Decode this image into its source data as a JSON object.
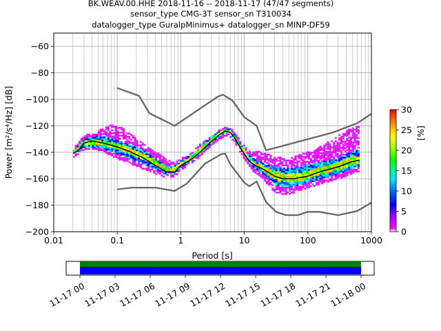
{
  "chart_data": {
    "type": "heatmap",
    "title_lines": [
      "BK.WEAV.00.HHE   2018-11-16 -- 2018-11-17  (47/47 segments)",
      "sensor_type CMG-3T sensor_sn T310034",
      "datalogger_type GuralpMinimus+ datalogger_sn MINP-DF59"
    ],
    "xlabel": "Period [s]",
    "ylabel": "Power [m²/s⁴/Hz] [dB]",
    "x_scale": "log",
    "xlim": [
      0.01,
      1000
    ],
    "ylim": [
      -200,
      -50
    ],
    "x_ticks": [
      {
        "value": 0.01,
        "label": "0.01"
      },
      {
        "value": 0.1,
        "label": "0.1"
      },
      {
        "value": 1,
        "label": "1"
      },
      {
        "value": 10,
        "label": "10"
      },
      {
        "value": 100,
        "label": "100"
      },
      {
        "value": 1000,
        "label": "1000"
      }
    ],
    "y_ticks": [
      {
        "value": -60,
        "label": "−60"
      },
      {
        "value": -80,
        "label": "−80"
      },
      {
        "value": -100,
        "label": "−100"
      },
      {
        "value": -120,
        "label": "−120"
      },
      {
        "value": -140,
        "label": "−140"
      },
      {
        "value": -160,
        "label": "−160"
      },
      {
        "value": -180,
        "label": "−180"
      },
      {
        "value": -200,
        "label": "−200"
      }
    ],
    "grid": true,
    "colorbar": {
      "label": "[%]",
      "range": [
        0,
        30
      ],
      "ticks": [
        {
          "value": 0,
          "label": "0"
        },
        {
          "value": 5,
          "label": "5"
        },
        {
          "value": 10,
          "label": "10"
        },
        {
          "value": 15,
          "label": "15"
        },
        {
          "value": 20,
          "label": "20"
        },
        {
          "value": 25,
          "label": "25"
        },
        {
          "value": 30,
          "label": "30"
        }
      ]
    },
    "noise_models": {
      "color": "#666666",
      "high": [
        [
          0.1,
          -91.5
        ],
        [
          0.22,
          -97.4
        ],
        [
          0.32,
          -110.5
        ],
        [
          0.8,
          -120
        ],
        [
          3.8,
          -98
        ],
        [
          4.6,
          -96.5
        ],
        [
          6.5,
          -101
        ],
        [
          10,
          -113.5
        ],
        [
          15.6,
          -120
        ],
        [
          21.9,
          -138.5
        ],
        [
          31.6,
          -136.5
        ],
        [
          250,
          -125
        ],
        [
          600,
          -118
        ],
        [
          1000,
          -111
        ]
      ],
      "low": [
        [
          0.1,
          -168
        ],
        [
          0.17,
          -166.7
        ],
        [
          0.4,
          -166.7
        ],
        [
          0.8,
          -169.2
        ],
        [
          1.24,
          -163.7
        ],
        [
          2.4,
          -148.6
        ],
        [
          4.3,
          -141.5
        ],
        [
          5.0,
          -141.1
        ],
        [
          6.0,
          -149
        ],
        [
          10,
          -163
        ],
        [
          12,
          -165.7
        ],
        [
          15.6,
          -162.1
        ],
        [
          21.9,
          -177.5
        ],
        [
          31.6,
          -185
        ],
        [
          45,
          -187.5
        ],
        [
          70,
          -187.5
        ],
        [
          100,
          -185
        ],
        [
          150,
          -185
        ],
        [
          300,
          -187.5
        ],
        [
          600,
          -184.4
        ],
        [
          1000,
          -178
        ]
      ]
    },
    "mode_curve": {
      "color": "#000000",
      "points": [
        [
          0.02,
          -141
        ],
        [
          0.025,
          -138
        ],
        [
          0.03,
          -133
        ],
        [
          0.04,
          -131.5
        ],
        [
          0.06,
          -133
        ],
        [
          0.1,
          -136
        ],
        [
          0.15,
          -139
        ],
        [
          0.25,
          -144
        ],
        [
          0.4,
          -150
        ],
        [
          0.6,
          -155
        ],
        [
          0.8,
          -155
        ],
        [
          1.0,
          -150
        ],
        [
          1.5,
          -145
        ],
        [
          2,
          -140
        ],
        [
          3,
          -132
        ],
        [
          4,
          -127
        ],
        [
          5,
          -124
        ],
        [
          6,
          -125
        ],
        [
          7,
          -129
        ],
        [
          9,
          -138
        ],
        [
          12,
          -147
        ],
        [
          15,
          -150
        ],
        [
          20,
          -153
        ],
        [
          30,
          -158
        ],
        [
          40,
          -160
        ],
        [
          60,
          -160
        ],
        [
          100,
          -158
        ],
        [
          150,
          -155
        ],
        [
          300,
          -151
        ],
        [
          500,
          -147
        ],
        [
          650,
          -146
        ]
      ]
    },
    "psd_density": {
      "colors": [
        "#ff00ff",
        "#cc33ff",
        "#0000ff",
        "#0066ff",
        "#00ccff",
        "#33ffcc",
        "#00ff00",
        "#88ff00",
        "#ffff00",
        "#ffaa00",
        "#ff0000"
      ],
      "bands": [
        {
          "points": [
            [
              0.02,
              -144,
              -138
            ],
            [
              0.03,
              -138,
              -128
            ],
            [
              0.05,
              -138,
              -124
            ],
            [
              0.08,
              -142,
              -120
            ],
            [
              0.12,
              -146,
              -122
            ],
            [
              0.2,
              -150,
              -130
            ],
            [
              0.35,
              -155,
              -138
            ],
            [
              0.6,
              -159,
              -146
            ],
            [
              0.8,
              -158,
              -148
            ],
            [
              1,
              -153,
              -145
            ],
            [
              1.5,
              -148,
              -140
            ],
            [
              2,
              -143,
              -134
            ],
            [
              3,
              -135,
              -128
            ],
            [
              4,
              -130,
              -124
            ],
            [
              5,
              -127,
              -121
            ],
            [
              6,
              -128,
              -121
            ],
            [
              7,
              -132,
              -125
            ],
            [
              9,
              -141,
              -133
            ],
            [
              12,
              -151,
              -140
            ],
            [
              15,
              -156,
              -140
            ],
            [
              20,
              -160,
              -140
            ],
            [
              30,
              -170,
              -144
            ],
            [
              45,
              -172,
              -145
            ],
            [
              80,
              -168,
              -142
            ],
            [
              150,
              -164,
              -137
            ],
            [
              300,
              -160,
              -128
            ],
            [
              500,
              -156,
              -122
            ],
            [
              650,
              -154,
              -120
            ]
          ]
        },
        {
          "points": [
            [
              0.02,
              -142,
              -140
            ],
            [
              0.03,
              -137,
              -130
            ],
            [
              0.05,
              -137,
              -128
            ],
            [
              0.08,
              -140,
              -130
            ],
            [
              0.12,
              -143,
              -133
            ],
            [
              0.2,
              -147,
              -136
            ],
            [
              0.35,
              -152,
              -143
            ],
            [
              0.6,
              -157,
              -151
            ],
            [
              0.8,
              -157,
              -151
            ],
            [
              1,
              -152,
              -147
            ],
            [
              1.5,
              -147,
              -142
            ],
            [
              2,
              -142,
              -136
            ],
            [
              3,
              -134,
              -129
            ],
            [
              4,
              -129,
              -125
            ],
            [
              5,
              -126,
              -122
            ],
            [
              6,
              -127,
              -123
            ],
            [
              7,
              -131,
              -127
            ],
            [
              9,
              -140,
              -135
            ],
            [
              12,
              -149,
              -143
            ],
            [
              15,
              -153,
              -146
            ],
            [
              20,
              -157,
              -149
            ],
            [
              30,
              -165,
              -151
            ],
            [
              45,
              -167,
              -153
            ],
            [
              80,
              -165,
              -151
            ],
            [
              150,
              -161,
              -148
            ],
            [
              300,
              -157,
              -145
            ],
            [
              500,
              -153,
              -140
            ],
            [
              650,
              -151,
              -139
            ]
          ]
        },
        {
          "points": [
            [
              0.02,
              -141,
              -140
            ],
            [
              0.03,
              -135,
              -132
            ],
            [
              0.05,
              -135,
              -131
            ],
            [
              0.08,
              -137,
              -133
            ],
            [
              0.12,
              -140,
              -135
            ],
            [
              0.2,
              -144,
              -139
            ],
            [
              0.35,
              -149,
              -145
            ],
            [
              0.6,
              -155,
              -152
            ],
            [
              0.8,
              -155,
              -152
            ],
            [
              1,
              -151,
              -148
            ],
            [
              1.5,
              -146,
              -143
            ],
            [
              2,
              -141,
              -137
            ],
            [
              3,
              -133,
              -130
            ],
            [
              4,
              -128,
              -126
            ],
            [
              5,
              -125,
              -123
            ],
            [
              6,
              -126,
              -124
            ],
            [
              7,
              -130,
              -128
            ],
            [
              9,
              -139,
              -136
            ],
            [
              12,
              -147,
              -145
            ],
            [
              15,
              -151,
              -148
            ],
            [
              20,
              -155,
              -151
            ],
            [
              30,
              -161,
              -155
            ],
            [
              45,
              -163,
              -157
            ],
            [
              80,
              -162,
              -156
            ],
            [
              150,
              -158,
              -152
            ],
            [
              300,
              -154,
              -148
            ],
            [
              500,
              -150,
              -144
            ],
            [
              650,
              -149,
              -143
            ]
          ]
        }
      ]
    },
    "timeline": {
      "tick_labels": [
        "11-17 00",
        "11-17 03",
        "11-17 06",
        "11-17 09",
        "11-17 12",
        "11-17 15",
        "11-17 18",
        "11-17 21",
        "11-18 00"
      ],
      "coverage_color": "#0000ff",
      "gap_bar_color": "#008000"
    }
  }
}
